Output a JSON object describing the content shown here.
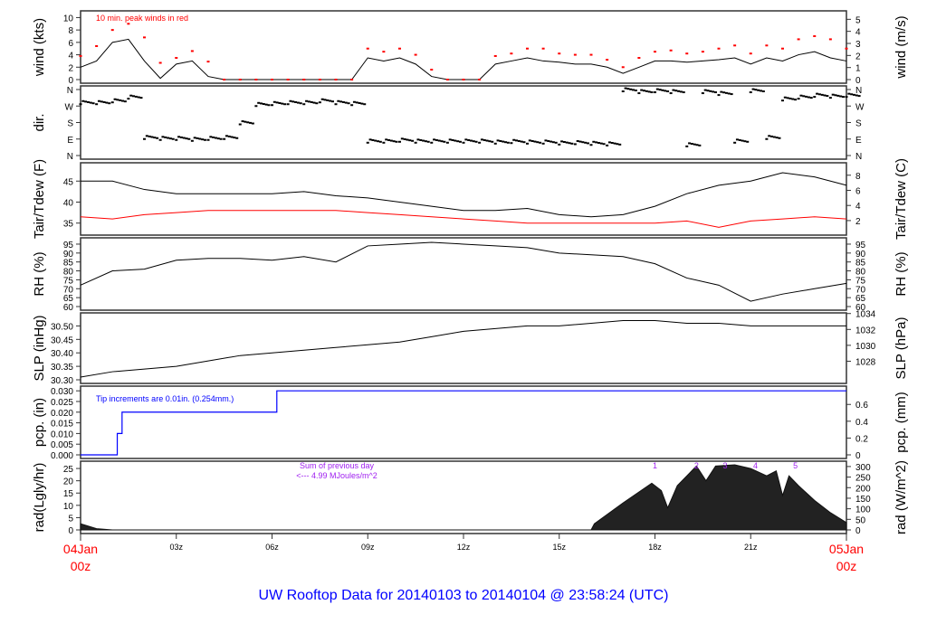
{
  "title": "UW Rooftop Data for 20140103  to  20140104 @ 23:58:24  (UTC)",
  "colors": {
    "title": "#0000ff",
    "peak": "#ff0000",
    "dew": "#ff0000",
    "pcp": "#0000ff",
    "annot": "#a020f0",
    "date": "#ff0000"
  },
  "x_axis": {
    "ticks": [
      {
        "h": 3,
        "label": "03z"
      },
      {
        "h": 6,
        "label": "06z"
      },
      {
        "h": 9,
        "label": "09z"
      },
      {
        "h": 12,
        "label": "12z"
      },
      {
        "h": 15,
        "label": "15z"
      },
      {
        "h": 18,
        "label": "18z"
      },
      {
        "h": 21,
        "label": "21z"
      }
    ],
    "start": [
      "04Jan",
      "00z"
    ],
    "end": [
      "05Jan",
      "00z"
    ]
  },
  "chart_data": [
    {
      "type": "line",
      "id": "wind",
      "ylabel": "wind (kts)",
      "ylabel_right": "wind (m/s)",
      "ylim": [
        0,
        10.5
      ],
      "yticks": [
        0,
        2,
        4,
        6,
        8,
        10
      ],
      "rticks": [
        {
          "v": 0,
          "label": "0"
        },
        {
          "v": 1.94,
          "label": "1"
        },
        {
          "v": 3.89,
          "label": "2"
        },
        {
          "v": 5.83,
          "label": "3"
        },
        {
          "v": 7.78,
          "label": "4"
        },
        {
          "v": 9.72,
          "label": "5"
        }
      ],
      "annotation": "10 min. peak winds in red",
      "x_step_hours": 0.5,
      "values": [
        2,
        3,
        6,
        6.5,
        3,
        0.2,
        2.5,
        3,
        0.5,
        0,
        0,
        0,
        0,
        0,
        0,
        0,
        0,
        0,
        3.5,
        3,
        3.5,
        2.5,
        0.5,
        0,
        0,
        0,
        2.5,
        3,
        3.5,
        3,
        2.8,
        2.5,
        2.5,
        2,
        1,
        2,
        3,
        3,
        2.8,
        3,
        3.2,
        3.5,
        2.5,
        3.5,
        3,
        4,
        4.5,
        3.5,
        3
      ],
      "peaks": [
        3.8,
        5.4,
        8,
        9,
        6.8,
        2.7,
        3.5,
        4.6,
        2.9,
        0,
        0,
        0,
        0,
        0,
        0,
        0,
        0,
        0,
        5,
        4.5,
        5,
        4,
        1.6,
        0,
        0,
        0,
        3.8,
        4.2,
        5,
        5,
        4.2,
        4,
        4,
        3.2,
        2,
        3.5,
        4.5,
        4.7,
        4.2,
        4.5,
        5,
        5.5,
        4.2,
        5.5,
        5,
        6.5,
        7,
        6.5,
        5
      ]
    },
    {
      "type": "scatter",
      "id": "dir",
      "ylabel": "dir.",
      "ylim": [
        0,
        360
      ],
      "yticks": [
        {
          "v": 0,
          "label": "N"
        },
        {
          "v": 90,
          "label": "E"
        },
        {
          "v": 180,
          "label": "S"
        },
        {
          "v": 270,
          "label": "W"
        },
        {
          "v": 360,
          "label": "N"
        }
      ],
      "x_step_hours": 0.5,
      "values": [
        290,
        290,
        300,
        320,
        100,
        95,
        95,
        90,
        95,
        100,
        180,
        280,
        285,
        290,
        290,
        300,
        290,
        285,
        80,
        80,
        85,
        80,
        80,
        80,
        80,
        80,
        75,
        78,
        75,
        75,
        70,
        72,
        68,
        65,
        360,
        350,
        355,
        350,
        60,
        350,
        340,
        80,
        355,
        100,
        310,
        320,
        330,
        325,
        330
      ]
    },
    {
      "type": "line",
      "id": "temp",
      "ylabel": "Tair/Tdew (F)",
      "ylabel_right": "Tair/Tdew (C)",
      "ylim": [
        33,
        48.5
      ],
      "yticks": [
        35,
        40,
        45
      ],
      "rticks": [
        {
          "v": 35.6,
          "label": "2"
        },
        {
          "v": 39.2,
          "label": "4"
        },
        {
          "v": 42.8,
          "label": "6"
        },
        {
          "v": 46.4,
          "label": "8"
        }
      ],
      "x_step_hours": 1,
      "series": [
        {
          "values": [
            45,
            45,
            43,
            42,
            42,
            42,
            42,
            42.5,
            41.5,
            41,
            40,
            39,
            38,
            38,
            38.5,
            37,
            36.5,
            37,
            39,
            42,
            44,
            45,
            47,
            46,
            44
          ]
        },
        {
          "values": [
            36.5,
            36,
            37,
            37.5,
            38,
            38,
            38,
            38,
            38,
            37.5,
            37,
            36.5,
            36,
            35.5,
            35,
            35,
            35,
            35,
            35,
            35.5,
            34,
            35.5,
            36,
            36.5,
            36
          ]
        }
      ]
    },
    {
      "type": "line",
      "id": "rh",
      "ylabel": "RH (%)",
      "ylabel_right": "RH (%)",
      "ylim": [
        60,
        96.5
      ],
      "yticks": [
        60,
        65,
        70,
        75,
        80,
        85,
        90,
        95
      ],
      "x_step_hours": 1,
      "values": [
        72,
        80,
        81,
        86,
        87,
        87,
        86,
        88,
        85,
        94,
        95,
        96,
        95,
        94,
        93,
        90,
        89,
        88,
        84,
        76,
        72,
        63,
        67,
        70,
        73
      ]
    },
    {
      "type": "line",
      "id": "slp",
      "ylabel": "SLP (inHg)",
      "ylabel_right": "SLP (hPa)",
      "ylim": [
        30.3,
        30.535
      ],
      "yticks": [
        {
          "v": 30.3,
          "label": "30.30"
        },
        {
          "v": 30.35,
          "label": "30.35"
        },
        {
          "v": 30.4,
          "label": "30.40"
        },
        {
          "v": 30.45,
          "label": "30.45"
        },
        {
          "v": 30.5,
          "label": "30.50"
        }
      ],
      "rticks": [
        {
          "v": 30.369,
          "label": "1028"
        },
        {
          "v": 30.428,
          "label": "1030"
        },
        {
          "v": 30.487,
          "label": "1032"
        },
        {
          "v": 30.546,
          "label": "1034"
        }
      ],
      "x_step_hours": 1,
      "values": [
        30.31,
        30.33,
        30.34,
        30.35,
        30.37,
        30.39,
        30.4,
        30.41,
        30.42,
        30.43,
        30.44,
        30.46,
        30.48,
        30.49,
        30.5,
        30.5,
        30.51,
        30.52,
        30.52,
        30.51,
        30.51,
        30.5,
        30.5,
        30.5,
        30.5
      ]
    },
    {
      "type": "line",
      "id": "pcp",
      "ylabel": "pcp. (in)",
      "ylabel_right": "pcp. (mm)",
      "ylim": [
        0,
        0.0305
      ],
      "yticks": [
        {
          "v": 0,
          "label": "0.000"
        },
        {
          "v": 0.005,
          "label": "0.005"
        },
        {
          "v": 0.01,
          "label": "0.010"
        },
        {
          "v": 0.015,
          "label": "0.015"
        },
        {
          "v": 0.02,
          "label": "0.020"
        },
        {
          "v": 0.025,
          "label": "0.025"
        },
        {
          "v": 0.03,
          "label": "0.030"
        }
      ],
      "rticks": [
        {
          "v": 0,
          "label": "0"
        },
        {
          "v": 0.00787,
          "label": "0.2"
        },
        {
          "v": 0.01575,
          "label": "0.4"
        },
        {
          "v": 0.02362,
          "label": "0.6"
        }
      ],
      "annotation": "Tip increments are 0.01in. (0.254mm.)",
      "steps": [
        [
          0,
          0
        ],
        [
          1.15,
          0.01
        ],
        [
          1.3,
          0.02
        ],
        [
          6.15,
          0.03
        ],
        [
          24,
          0.03
        ]
      ]
    },
    {
      "type": "area",
      "id": "rad",
      "ylabel": "rad(Lgly/hr)",
      "ylabel_right": "rad (W/m^2)",
      "ylim": [
        0,
        26.5
      ],
      "yticks": [
        0,
        5,
        10,
        15,
        20,
        25
      ],
      "rticks": [
        {
          "v": 0,
          "label": "0"
        },
        {
          "v": 4.3,
          "label": "50"
        },
        {
          "v": 8.6,
          "label": "100"
        },
        {
          "v": 12.9,
          "label": "150"
        },
        {
          "v": 17.2,
          "label": "200"
        },
        {
          "v": 21.5,
          "label": "250"
        },
        {
          "v": 25.8,
          "label": "300"
        }
      ],
      "annotation": [
        "Sum of previous day",
        "<--- 4.99 MJoules/m^2"
      ],
      "points": [
        [
          0,
          2.5
        ],
        [
          0.5,
          0.5
        ],
        [
          1,
          0
        ],
        [
          16,
          0
        ],
        [
          16.1,
          2.5
        ],
        [
          17,
          11
        ],
        [
          17.9,
          19
        ],
        [
          18.2,
          16
        ],
        [
          18.4,
          9
        ],
        [
          18.7,
          18
        ],
        [
          19,
          22
        ],
        [
          19.3,
          26
        ],
        [
          19.6,
          20
        ],
        [
          19.9,
          26
        ],
        [
          20.5,
          26.5
        ],
        [
          21,
          25
        ],
        [
          21.5,
          22
        ],
        [
          21.8,
          24
        ],
        [
          22,
          14
        ],
        [
          22.2,
          22
        ],
        [
          22.5,
          18
        ],
        [
          23,
          12
        ],
        [
          23.5,
          7
        ],
        [
          24,
          3
        ]
      ],
      "markers": [
        {
          "h": 18.0,
          "label": "1"
        },
        {
          "h": 19.3,
          "label": "2"
        },
        {
          "h": 20.2,
          "label": "3"
        },
        {
          "h": 21.15,
          "label": "4"
        },
        {
          "h": 22.4,
          "label": "5"
        }
      ]
    }
  ]
}
